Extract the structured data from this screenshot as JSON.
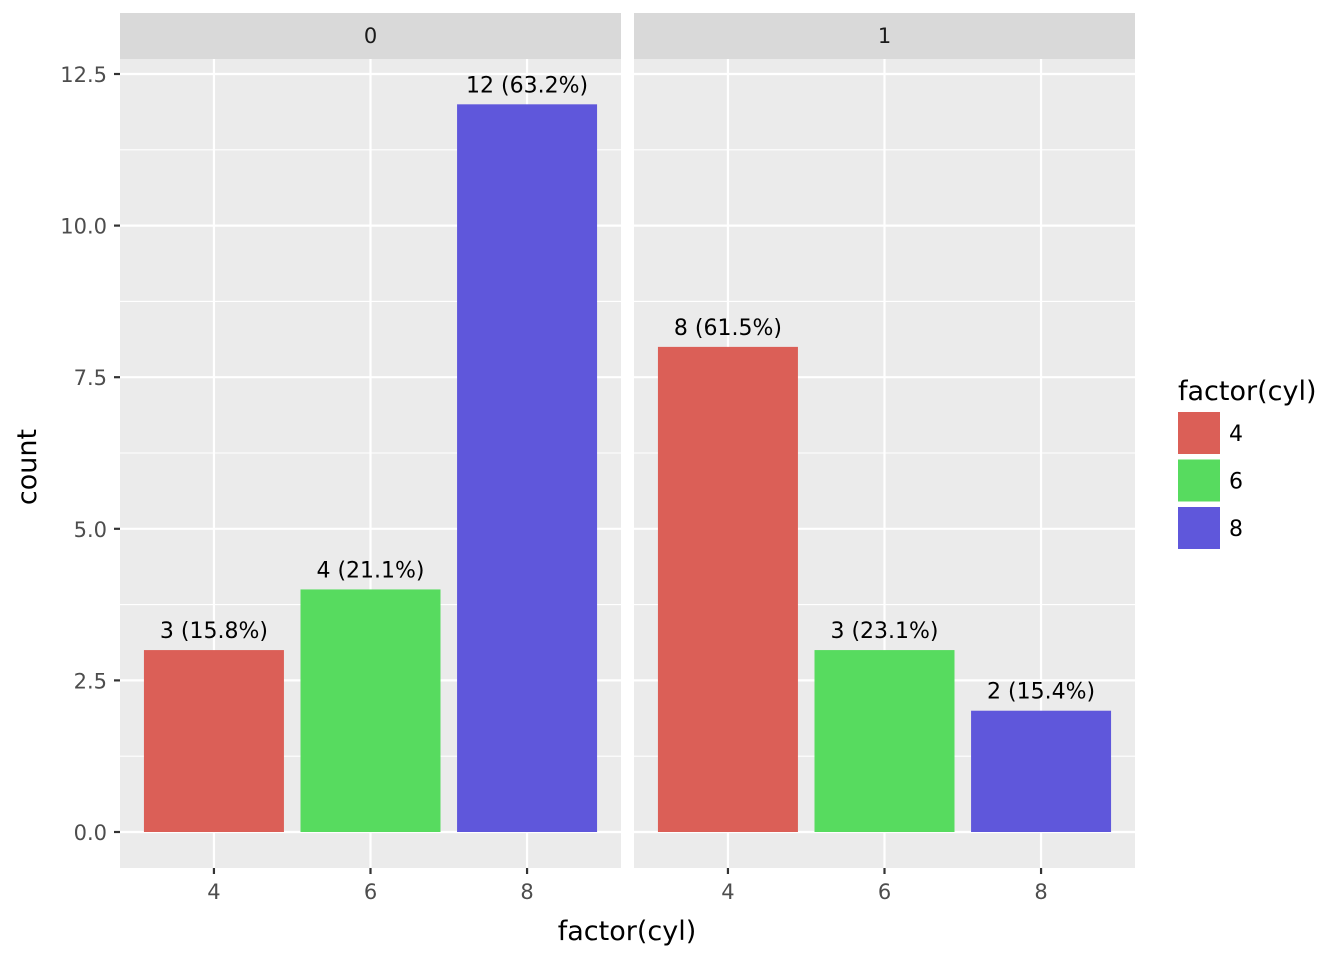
{
  "chart_data": {
    "type": "bar",
    "facet_variable_levels": [
      "0",
      "1"
    ],
    "categories": [
      "4",
      "6",
      "8"
    ],
    "xlabel": "factor(cyl)",
    "ylabel": "count",
    "ylim": [
      0,
      13.3
    ],
    "y_ticks": [
      "0.0",
      "2.5",
      "5.0",
      "7.5",
      "10.0",
      "12.5"
    ],
    "y_tick_values": [
      0,
      2.5,
      5,
      7.5,
      10,
      12.5
    ],
    "grid": true,
    "legend": {
      "title": "factor(cyl)",
      "placement": "right",
      "entries": [
        {
          "label": "4",
          "color": "#DB5F57"
        },
        {
          "label": "6",
          "color": "#57DB5F"
        },
        {
          "label": "8",
          "color": "#5F57DB"
        }
      ]
    },
    "panels": [
      {
        "strip": "0",
        "values": [
          3,
          4,
          12
        ],
        "labels": [
          "3 (15.8%)",
          "4 (21.1%)",
          "12 (63.2%)"
        ]
      },
      {
        "strip": "1",
        "values": [
          8,
          3,
          2
        ],
        "labels": [
          "8 (61.5%)",
          "3 (23.1%)",
          "2 (15.4%)"
        ]
      }
    ]
  }
}
